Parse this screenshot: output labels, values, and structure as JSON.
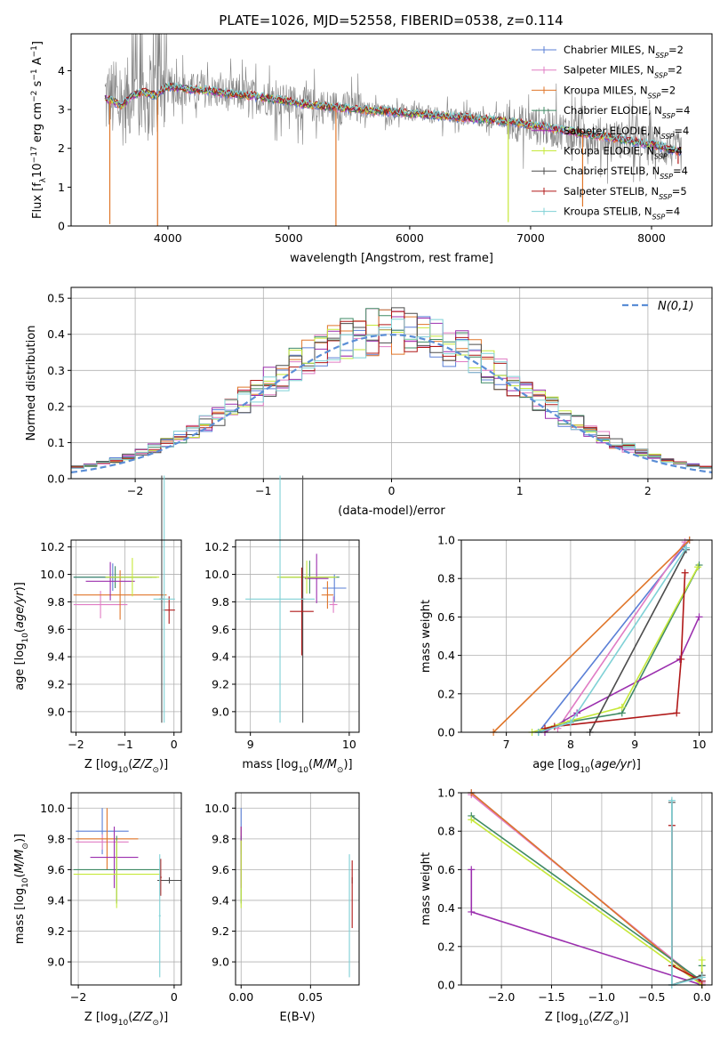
{
  "figure_title": "PLATE=1026, MJD=52558, FIBERID=0538, z=0.114",
  "colors": {
    "chabrier_miles": "#5a7fd6",
    "salpeter_miles": "#e07cc4",
    "kroupa_miles": "#e0762a",
    "chabrier_elodie": "#3f8a64",
    "salpeter_elodie": "#9b2fae",
    "kroupa_elodie": "#c6e83a",
    "chabrier_stelib": "#4c4c4c",
    "salpeter_stelib": "#b01818",
    "kroupa_stelib": "#7fd1d6",
    "data": "#808080",
    "gaussian": "#5b8ed6"
  },
  "chart_data": [
    {
      "type": "line",
      "xlabel": "wavelength [Angstrom, rest frame]",
      "ylabel": "Flux [f_λ 10^-17 erg cm^-2 s^-1 A^-1]",
      "xlim": [
        3200,
        8500
      ],
      "ylim": [
        0,
        4.95
      ],
      "xticks": [
        4000,
        5000,
        6000,
        7000,
        8000
      ],
      "yticks": [
        0,
        1,
        2,
        3,
        4
      ],
      "grid": false,
      "legend_position": "top-right",
      "legend": [
        {
          "main": "Chabrier MILES, N",
          "sub": "SSP",
          "tail": "=2",
          "key": "chabrier_miles"
        },
        {
          "main": "Salpeter MILES, N",
          "sub": "SSP",
          "tail": "=2",
          "key": "salpeter_miles"
        },
        {
          "main": "Kroupa MILES, N",
          "sub": "SSP",
          "tail": "=2",
          "key": "kroupa_miles"
        },
        {
          "main": "Chabrier ELODIE, N",
          "sub": "SSP",
          "tail": "=4",
          "key": "chabrier_elodie"
        },
        {
          "main": "Salpeter ELODIE, N",
          "sub": "SSP",
          "tail": "=4",
          "key": "salpeter_elodie"
        },
        {
          "main": "Kroupa ELODIE, N",
          "sub": "SSP",
          "tail": "=4",
          "key": "kroupa_elodie"
        },
        {
          "main": "Chabrier STELIB, N",
          "sub": "SSP",
          "tail": "=4",
          "key": "chabrier_stelib"
        },
        {
          "main": "Salpeter STELIB, N",
          "sub": "SSP",
          "tail": "=5",
          "key": "salpeter_stelib"
        },
        {
          "main": "Kroupa STELIB, N",
          "sub": "SSP",
          "tail": "=4",
          "key": "kroupa_stelib"
        }
      ],
      "model_x": [
        3480,
        3550,
        3620,
        3700,
        3800,
        3900,
        3950,
        4000,
        4100,
        4200,
        4300,
        4400,
        4500,
        4700,
        4900,
        5000,
        5200,
        5400,
        5600,
        5800,
        6000,
        6200,
        6400,
        6600,
        6800,
        7000,
        7200,
        7400,
        7600,
        7800,
        8000,
        8200,
        8250
      ],
      "model_y": [
        3.3,
        3.2,
        3.1,
        3.35,
        3.45,
        3.35,
        3.5,
        3.6,
        3.55,
        3.5,
        3.5,
        3.45,
        3.4,
        3.35,
        3.25,
        3.2,
        3.1,
        3.05,
        3.0,
        2.95,
        2.9,
        2.85,
        2.8,
        2.75,
        2.7,
        2.6,
        2.5,
        2.4,
        2.3,
        2.2,
        2.1,
        1.95,
        1.9
      ],
      "dips": [
        {
          "x": 3520,
          "y": 0.05,
          "key": "kroupa_miles"
        },
        {
          "x": 3915,
          "y": 0.0,
          "key": "kroupa_miles"
        },
        {
          "x": 5390,
          "y": 0.0,
          "key": "kroupa_miles"
        },
        {
          "x": 6815,
          "y": 0.1,
          "key": "kroupa_elodie"
        },
        {
          "x": 7430,
          "y": 0.5,
          "key": "kroupa_miles"
        },
        {
          "x": 8220,
          "y": 1.6,
          "key": "salpeter_stelib"
        }
      ]
    },
    {
      "type": "line",
      "xlabel": "(data-model)/error",
      "ylabel": "Normed distribution",
      "xlim": [
        -2.5,
        2.5
      ],
      "ylim": [
        0,
        0.53
      ],
      "xticks": [
        -2,
        -1,
        0,
        1,
        2
      ],
      "yticks": [
        0.0,
        0.1,
        0.2,
        0.3,
        0.4,
        0.5
      ],
      "grid": true,
      "legend_position": "top-right",
      "gaussian_label": "N(0,1)",
      "hist_bin_width": 0.1
    },
    {
      "type": "scatter",
      "xlabel": "Z [log10(Z/Z⊙)]",
      "ylabel": "age [log10(age/yr)]",
      "xlim": [
        -2.1,
        0.15
      ],
      "ylim": [
        8.85,
        10.25
      ],
      "xticks": [
        -2,
        -1,
        0
      ],
      "yticks": [
        9.0,
        9.2,
        9.4,
        9.6,
        9.8,
        10.0,
        10.2
      ],
      "grid": true,
      "points": [
        {
          "x": -1.25,
          "y": 9.98,
          "xerr": 0.8,
          "yerr": 0.1,
          "key": "chabrier_miles"
        },
        {
          "x": -1.5,
          "y": 9.78,
          "xerr": 0.55,
          "yerr": 0.1,
          "key": "salpeter_miles"
        },
        {
          "x": -1.1,
          "y": 9.85,
          "xerr": 0.95,
          "yerr": 0.18,
          "key": "kroupa_miles"
        },
        {
          "x": -1.2,
          "y": 9.98,
          "xerr": 0.85,
          "yerr": 0.08,
          "key": "chabrier_elodie"
        },
        {
          "x": -1.3,
          "y": 9.95,
          "xerr": 0.5,
          "yerr": 0.14,
          "key": "salpeter_elodie"
        },
        {
          "x": -0.85,
          "y": 9.98,
          "xerr": 0.55,
          "yerr": 0.14,
          "key": "kroupa_elodie"
        },
        {
          "x": -0.25,
          "y": 9.82,
          "xerr": 0.05,
          "yerr": 0.9,
          "key": "chabrier_stelib"
        },
        {
          "x": -0.1,
          "y": 9.74,
          "xerr": 0.12,
          "yerr": 0.1,
          "key": "salpeter_stelib"
        },
        {
          "x": -0.2,
          "y": 9.82,
          "xerr": 0.22,
          "yerr": 0.9,
          "key": "kroupa_stelib"
        }
      ]
    },
    {
      "type": "scatter",
      "xlabel": "mass [log10(M/M⊙)]",
      "ylabel": "",
      "xlim": [
        8.85,
        10.1
      ],
      "ylim": [
        8.85,
        10.25
      ],
      "xticks": [
        9,
        10
      ],
      "yticks": [
        9.0,
        9.2,
        9.4,
        9.6,
        9.8,
        10.0,
        10.2
      ],
      "grid": true,
      "points": [
        {
          "x": 9.85,
          "y": 9.9,
          "xerr": 0.12,
          "yerr": 0.1,
          "key": "chabrier_miles"
        },
        {
          "x": 9.84,
          "y": 9.78,
          "xerr": 0.04,
          "yerr": 0.06,
          "key": "salpeter_miles"
        },
        {
          "x": 9.78,
          "y": 9.85,
          "xerr": 0.06,
          "yerr": 0.1,
          "key": "kroupa_miles"
        },
        {
          "x": 9.6,
          "y": 9.98,
          "xerr": 0.3,
          "yerr": 0.12,
          "key": "chabrier_elodie"
        },
        {
          "x": 9.67,
          "y": 9.97,
          "xerr": 0.12,
          "yerr": 0.18,
          "key": "salpeter_elodie"
        },
        {
          "x": 9.57,
          "y": 9.98,
          "xerr": 0.3,
          "yerr": 0.12,
          "key": "kroupa_elodie"
        },
        {
          "x": 9.53,
          "y": 9.82,
          "xerr": 0.02,
          "yerr": 0.9,
          "key": "chabrier_stelib"
        },
        {
          "x": 9.52,
          "y": 9.73,
          "xerr": 0.12,
          "yerr": 0.32,
          "key": "salpeter_stelib"
        },
        {
          "x": 9.3,
          "y": 9.82,
          "xerr": 0.35,
          "yerr": 0.9,
          "key": "kroupa_stelib"
        }
      ]
    },
    {
      "type": "line",
      "xlabel": "age [log10(age/yr)]",
      "ylabel": "mass weight",
      "xlim": [
        6.3,
        10.2
      ],
      "ylim": [
        0,
        1.0
      ],
      "xticks": [
        7,
        8,
        9,
        10
      ],
      "yticks": [
        0.0,
        0.2,
        0.4,
        0.6,
        0.8,
        1.0
      ],
      "grid": true,
      "series": [
        {
          "key": "chabrier_miles",
          "x": [
            7.5,
            9.85
          ],
          "y": [
            0.0,
            1.0
          ]
        },
        {
          "key": "salpeter_miles",
          "x": [
            7.8,
            9.78
          ],
          "y": [
            0.02,
            0.99
          ]
        },
        {
          "key": "kroupa_miles",
          "x": [
            6.8,
            9.85
          ],
          "y": [
            0.0,
            1.0
          ]
        },
        {
          "key": "chabrier_elodie",
          "x": [
            7.5,
            7.9,
            8.8,
            10.0
          ],
          "y": [
            0.0,
            0.05,
            0.1,
            0.87
          ]
        },
        {
          "key": "salpeter_elodie",
          "x": [
            7.6,
            8.1,
            9.7,
            10.0
          ],
          "y": [
            0.0,
            0.1,
            0.38,
            0.6
          ]
        },
        {
          "key": "kroupa_elodie",
          "x": [
            7.4,
            8.0,
            8.8,
            9.98
          ],
          "y": [
            0.0,
            0.06,
            0.13,
            0.86
          ]
        },
        {
          "key": "chabrier_stelib",
          "x": [
            8.3,
            9.8
          ],
          "y": [
            0.0,
            0.95
          ]
        },
        {
          "key": "salpeter_stelib",
          "x": [
            7.6,
            7.75,
            9.65,
            9.72,
            9.78
          ],
          "y": [
            0.02,
            0.03,
            0.1,
            0.38,
            0.83
          ]
        },
        {
          "key": "kroupa_stelib",
          "x": [
            7.5,
            8.0,
            9.8
          ],
          "y": [
            0.0,
            0.05,
            0.96
          ]
        }
      ]
    },
    {
      "type": "scatter",
      "xlabel": "Z [log10(Z/Z⊙)]",
      "ylabel": "mass [log10(M/M⊙)]",
      "xlim": [
        -2.15,
        0.15
      ],
      "ylim": [
        8.85,
        10.1
      ],
      "xticks": [
        -2,
        0
      ],
      "yticks": [
        9.0,
        9.2,
        9.4,
        9.6,
        9.8,
        10.0
      ],
      "grid": true,
      "points": [
        {
          "x": -1.5,
          "y": 9.85,
          "xerr": 0.55,
          "yerr": 0.15,
          "key": "chabrier_miles"
        },
        {
          "x": -1.5,
          "y": 9.78,
          "xerr": 0.55,
          "yerr": 0.05,
          "key": "salpeter_miles"
        },
        {
          "x": -1.4,
          "y": 9.8,
          "xerr": 0.65,
          "yerr": 0.2,
          "key": "kroupa_miles"
        },
        {
          "x": -1.2,
          "y": 9.6,
          "xerr": 0.9,
          "yerr": 0.22,
          "key": "chabrier_elodie"
        },
        {
          "x": -1.25,
          "y": 9.68,
          "xerr": 0.5,
          "yerr": 0.2,
          "key": "salpeter_elodie"
        },
        {
          "x": -1.2,
          "y": 9.57,
          "xerr": 0.9,
          "yerr": 0.22,
          "key": "kroupa_elodie"
        },
        {
          "x": -0.1,
          "y": 9.53,
          "xerr": 0.25,
          "yerr": 0.02,
          "key": "chabrier_stelib"
        },
        {
          "x": -0.28,
          "y": 9.55,
          "xerr": 0.02,
          "yerr": 0.12,
          "key": "salpeter_stelib"
        },
        {
          "x": -0.3,
          "y": 9.3,
          "xerr": 0.02,
          "yerr": 0.4,
          "key": "kroupa_stelib"
        }
      ]
    },
    {
      "type": "scatter",
      "xlabel": "E(B-V)",
      "ylabel": "",
      "xlim": [
        -0.004,
        0.085
      ],
      "ylim": [
        8.85,
        10.1
      ],
      "xticks": [
        0.0,
        0.05
      ],
      "xticklabels": [
        "0.00",
        "0.05"
      ],
      "yticks": [
        9.0,
        9.2,
        9.4,
        9.6,
        9.8,
        10.0
      ],
      "grid": true,
      "points": [
        {
          "x": 0.0,
          "y": 9.85,
          "yerr": 0.15,
          "key": "chabrier_miles"
        },
        {
          "x": 0.0,
          "y": 9.78,
          "yerr": 0.05,
          "key": "salpeter_miles"
        },
        {
          "x": 0.0,
          "y": 9.8,
          "yerr": 0.08,
          "key": "kroupa_miles"
        },
        {
          "x": 0.0,
          "y": 9.6,
          "yerr": 0.22,
          "key": "chabrier_elodie"
        },
        {
          "x": 0.0,
          "y": 9.68,
          "yerr": 0.2,
          "key": "salpeter_elodie"
        },
        {
          "x": 0.0,
          "y": 9.57,
          "yerr": 0.22,
          "key": "kroupa_elodie"
        },
        {
          "x": 0.08,
          "y": 9.53,
          "yerr": 0.02,
          "key": "chabrier_stelib"
        },
        {
          "x": 0.08,
          "y": 9.44,
          "yerr": 0.22,
          "key": "salpeter_stelib"
        },
        {
          "x": 0.078,
          "y": 9.3,
          "yerr": 0.4,
          "key": "kroupa_stelib"
        }
      ]
    },
    {
      "type": "line",
      "xlabel": "Z [log10(Z/Z⊙)]",
      "ylabel": "mass weight",
      "xlim": [
        -2.4,
        0.1
      ],
      "ylim": [
        0,
        1.0
      ],
      "xticks": [
        -2.0,
        -1.5,
        -1.0,
        -0.5,
        0.0
      ],
      "yticks": [
        0.0,
        0.2,
        0.4,
        0.6,
        0.8,
        1.0
      ],
      "grid": true,
      "series": [
        {
          "key": "chabrier_miles",
          "x": [
            -2.3,
            0.0
          ],
          "y": [
            1.0,
            0.0
          ]
        },
        {
          "key": "salpeter_miles",
          "x": [
            -2.3,
            0.0
          ],
          "y": [
            0.99,
            0.01
          ]
        },
        {
          "key": "kroupa_miles",
          "x": [
            -2.3,
            0.0
          ],
          "y": [
            1.0,
            0.0
          ]
        },
        {
          "key": "chabrier_elodie",
          "x": [
            -2.3,
            0.0,
            0.0
          ],
          "y": [
            0.88,
            0.02,
            0.1
          ]
        },
        {
          "key": "salpeter_elodie",
          "x": [
            -2.3,
            -2.3,
            0.0,
            0.0
          ],
          "y": [
            0.6,
            0.38,
            0.0,
            0.02
          ]
        },
        {
          "key": "kroupa_elodie",
          "x": [
            -2.3,
            0.0,
            0.0
          ],
          "y": [
            0.86,
            0.0,
            0.13
          ]
        },
        {
          "key": "chabrier_stelib",
          "x": [
            -0.3,
            -0.3,
            0.0
          ],
          "y": [
            0.95,
            0.0,
            0.05
          ]
        },
        {
          "key": "salpeter_stelib",
          "x": [
            -0.3,
            -0.3,
            0.0
          ],
          "y": [
            0.83,
            0.1,
            0.02
          ]
        },
        {
          "key": "kroupa_stelib",
          "x": [
            -0.3,
            -0.3,
            0.0
          ],
          "y": [
            0.96,
            0.0,
            0.04
          ]
        }
      ]
    }
  ]
}
